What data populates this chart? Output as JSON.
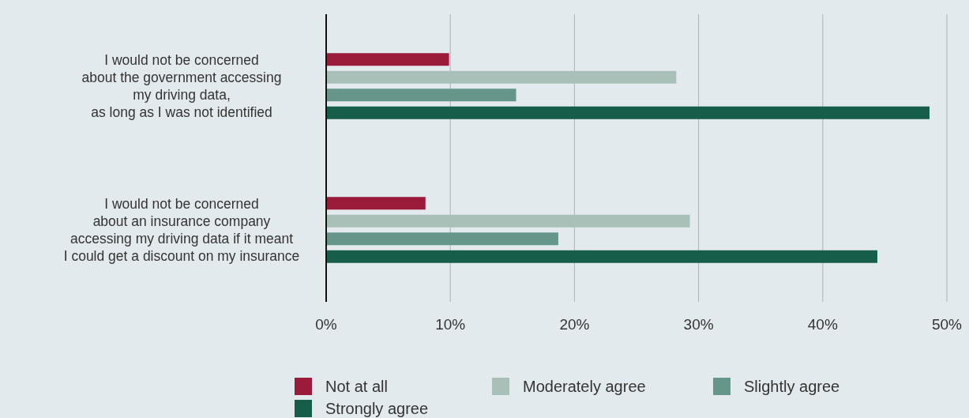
{
  "chart_data": {
    "type": "bar",
    "orientation": "horizontal",
    "categories": [
      "I would not be concerned\nabout the government accessing\nmy driving data,\nas long as I was not identified",
      "I would not be concerned\nabout an insurance company\naccessing my driving data if it meant\nI could get a discount on my insurance"
    ],
    "series": [
      {
        "name": "Not at all",
        "color": "#9b1b3a",
        "values": [
          9.9,
          8.0
        ]
      },
      {
        "name": "Moderately agree",
        "color": "#a9c0b9",
        "values": [
          28.2,
          29.3
        ]
      },
      {
        "name": "Slightly agree",
        "color": "#66968a",
        "values": [
          15.3,
          18.7
        ]
      },
      {
        "name": "Strongly agree",
        "color": "#175e4a",
        "values": [
          48.6,
          44.4
        ]
      }
    ],
    "xlim": [
      0,
      50
    ],
    "xticks": [
      {
        "value": 0,
        "label": "0%"
      },
      {
        "value": 10,
        "label": "10%"
      },
      {
        "value": 20,
        "label": "20%"
      },
      {
        "value": 30,
        "label": "30%"
      },
      {
        "value": 40,
        "label": "40%"
      },
      {
        "value": 50,
        "label": "50%"
      }
    ],
    "grid": "x",
    "legend": "bottom"
  }
}
